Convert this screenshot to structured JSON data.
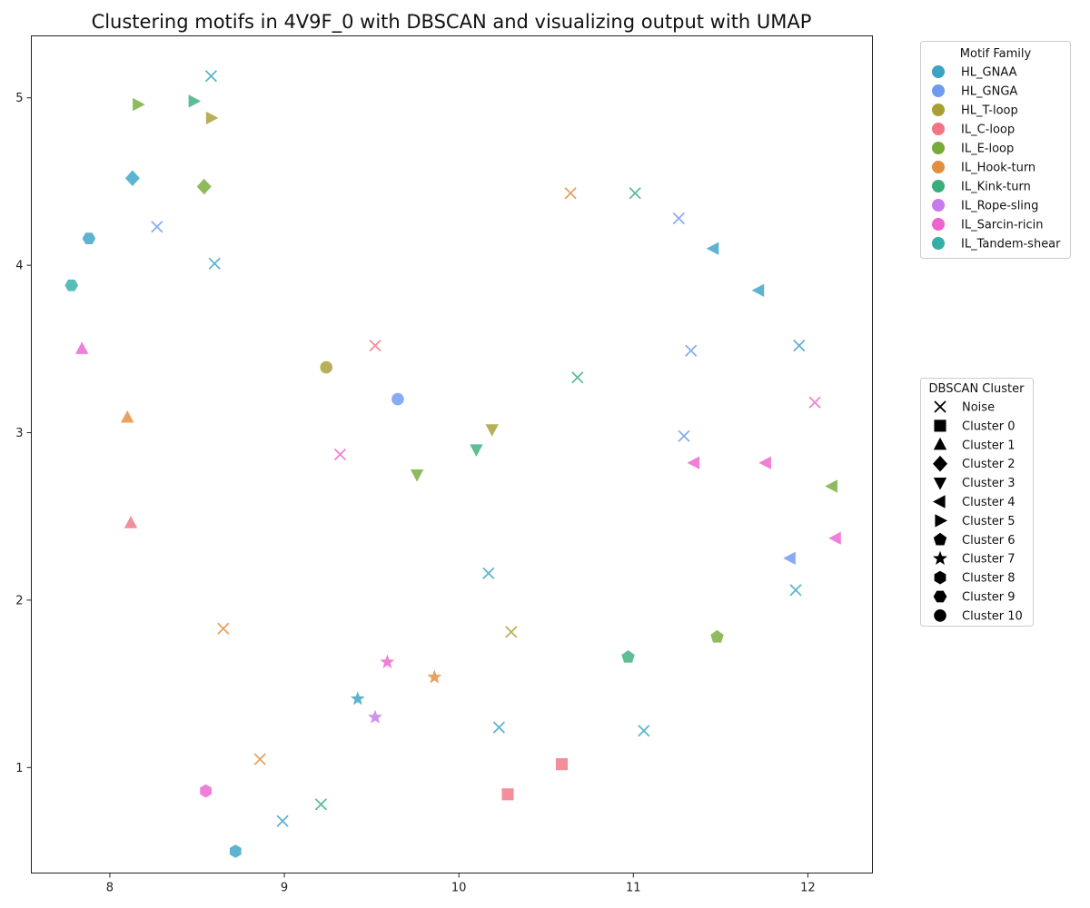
{
  "chart_data": {
    "type": "scatter",
    "title": "Clustering motifs in 4V9F_0 with DBSCAN and visualizing output with UMAP",
    "xlabel": "",
    "ylabel": "",
    "xlim": [
      7.55,
      12.37
    ],
    "ylim": [
      0.37,
      5.37
    ],
    "xticks": [
      8,
      9,
      10,
      11,
      12
    ],
    "yticks": [
      1,
      2,
      3,
      4,
      5
    ],
    "grid": false,
    "families": [
      {
        "name": "HL_GNAA",
        "color": "#3ba3c4"
      },
      {
        "name": "HL_GNGA",
        "color": "#6e9af0"
      },
      {
        "name": "HL_T-loop",
        "color": "#a89f35"
      },
      {
        "name": "IL_C-loop",
        "color": "#f07585"
      },
      {
        "name": "IL_E-loop",
        "color": "#76ac3a"
      },
      {
        "name": "IL_Hook-turn",
        "color": "#e08f3f"
      },
      {
        "name": "IL_Kink-turn",
        "color": "#3aae7c"
      },
      {
        "name": "IL_Rope-sling",
        "color": "#c77ae9"
      },
      {
        "name": "IL_Sarcin-ricin",
        "color": "#ec64cf"
      },
      {
        "name": "IL_Tandem-shear",
        "color": "#34aea7"
      }
    ],
    "family_legend_title": "Motif Family",
    "clusters": [
      {
        "name": "Noise",
        "marker": "x"
      },
      {
        "name": "Cluster 0",
        "marker": "square"
      },
      {
        "name": "Cluster 1",
        "marker": "triangle-up"
      },
      {
        "name": "Cluster 2",
        "marker": "diamond"
      },
      {
        "name": "Cluster 3",
        "marker": "triangle-down"
      },
      {
        "name": "Cluster 4",
        "marker": "triangle-left"
      },
      {
        "name": "Cluster 5",
        "marker": "triangle-right"
      },
      {
        "name": "Cluster 6",
        "marker": "pentagon"
      },
      {
        "name": "Cluster 7",
        "marker": "star"
      },
      {
        "name": "Cluster 8",
        "marker": "hexagon"
      },
      {
        "name": "Cluster 9",
        "marker": "hexagon-flat"
      },
      {
        "name": "Cluster 10",
        "marker": "circle"
      }
    ],
    "cluster_legend_title": "DBSCAN Cluster",
    "points": [
      {
        "x": 8.58,
        "y": 5.13,
        "family": "HL_GNAA",
        "cluster": "Noise"
      },
      {
        "x": 8.16,
        "y": 4.96,
        "family": "IL_E-loop",
        "cluster": "Cluster 5"
      },
      {
        "x": 8.48,
        "y": 4.98,
        "family": "IL_Kink-turn",
        "cluster": "Cluster 5"
      },
      {
        "x": 8.58,
        "y": 4.88,
        "family": "HL_T-loop",
        "cluster": "Cluster 5"
      },
      {
        "x": 8.13,
        "y": 4.52,
        "family": "HL_GNAA",
        "cluster": "Cluster 2"
      },
      {
        "x": 8.54,
        "y": 4.47,
        "family": "IL_E-loop",
        "cluster": "Cluster 2"
      },
      {
        "x": 8.27,
        "y": 4.23,
        "family": "HL_GNGA",
        "cluster": "Noise"
      },
      {
        "x": 7.88,
        "y": 4.16,
        "family": "HL_GNAA",
        "cluster": "Cluster 9"
      },
      {
        "x": 8.6,
        "y": 4.01,
        "family": "HL_GNAA",
        "cluster": "Noise"
      },
      {
        "x": 7.78,
        "y": 3.88,
        "family": "IL_Tandem-shear",
        "cluster": "Cluster 9"
      },
      {
        "x": 7.84,
        "y": 3.5,
        "family": "IL_Sarcin-ricin",
        "cluster": "Cluster 1"
      },
      {
        "x": 8.1,
        "y": 3.09,
        "family": "IL_Hook-turn",
        "cluster": "Cluster 1"
      },
      {
        "x": 8.12,
        "y": 2.46,
        "family": "IL_C-loop",
        "cluster": "Cluster 1"
      },
      {
        "x": 10.64,
        "y": 4.43,
        "family": "IL_Hook-turn",
        "cluster": "Noise"
      },
      {
        "x": 11.01,
        "y": 4.43,
        "family": "IL_Kink-turn",
        "cluster": "Noise"
      },
      {
        "x": 11.26,
        "y": 4.28,
        "family": "HL_GNGA",
        "cluster": "Noise"
      },
      {
        "x": 11.46,
        "y": 4.1,
        "family": "HL_GNAA",
        "cluster": "Cluster 4"
      },
      {
        "x": 11.72,
        "y": 3.85,
        "family": "HL_GNAA",
        "cluster": "Cluster 4"
      },
      {
        "x": 9.52,
        "y": 3.52,
        "family": "IL_C-loop",
        "cluster": "Noise"
      },
      {
        "x": 11.95,
        "y": 3.52,
        "family": "HL_GNAA",
        "cluster": "Noise"
      },
      {
        "x": 11.33,
        "y": 3.49,
        "family": "HL_GNGA",
        "cluster": "Noise"
      },
      {
        "x": 9.24,
        "y": 3.39,
        "family": "HL_T-loop",
        "cluster": "Cluster 10"
      },
      {
        "x": 10.68,
        "y": 3.33,
        "family": "IL_Kink-turn",
        "cluster": "Noise"
      },
      {
        "x": 9.65,
        "y": 3.2,
        "family": "HL_GNGA",
        "cluster": "Cluster 10"
      },
      {
        "x": 12.04,
        "y": 3.18,
        "family": "IL_Sarcin-ricin",
        "cluster": "Noise"
      },
      {
        "x": 10.19,
        "y": 3.02,
        "family": "HL_T-loop",
        "cluster": "Cluster 3"
      },
      {
        "x": 11.29,
        "y": 2.98,
        "family": "HL_GNGA",
        "cluster": "Noise"
      },
      {
        "x": 10.1,
        "y": 2.9,
        "family": "IL_Kink-turn",
        "cluster": "Cluster 3"
      },
      {
        "x": 9.32,
        "y": 2.87,
        "family": "IL_Sarcin-ricin",
        "cluster": "Noise"
      },
      {
        "x": 11.35,
        "y": 2.82,
        "family": "IL_Sarcin-ricin",
        "cluster": "Cluster 4"
      },
      {
        "x": 11.76,
        "y": 2.82,
        "family": "IL_Sarcin-ricin",
        "cluster": "Cluster 4"
      },
      {
        "x": 9.76,
        "y": 2.75,
        "family": "IL_E-loop",
        "cluster": "Cluster 3"
      },
      {
        "x": 12.14,
        "y": 2.68,
        "family": "IL_E-loop",
        "cluster": "Cluster 4"
      },
      {
        "x": 12.16,
        "y": 2.37,
        "family": "IL_Sarcin-ricin",
        "cluster": "Cluster 4"
      },
      {
        "x": 11.9,
        "y": 2.25,
        "family": "HL_GNGA",
        "cluster": "Cluster 4"
      },
      {
        "x": 10.17,
        "y": 2.16,
        "family": "HL_GNAA",
        "cluster": "Noise"
      },
      {
        "x": 11.93,
        "y": 2.06,
        "family": "HL_GNAA",
        "cluster": "Noise"
      },
      {
        "x": 8.65,
        "y": 1.83,
        "family": "IL_Hook-turn",
        "cluster": "Noise"
      },
      {
        "x": 10.3,
        "y": 1.81,
        "family": "HL_T-loop",
        "cluster": "Noise"
      },
      {
        "x": 11.48,
        "y": 1.78,
        "family": "IL_E-loop",
        "cluster": "Cluster 6"
      },
      {
        "x": 10.97,
        "y": 1.66,
        "family": "IL_Kink-turn",
        "cluster": "Cluster 6"
      },
      {
        "x": 9.59,
        "y": 1.63,
        "family": "IL_Sarcin-ricin",
        "cluster": "Cluster 7"
      },
      {
        "x": 9.86,
        "y": 1.54,
        "family": "IL_Hook-turn",
        "cluster": "Cluster 7"
      },
      {
        "x": 9.42,
        "y": 1.41,
        "family": "HL_GNAA",
        "cluster": "Cluster 7"
      },
      {
        "x": 9.52,
        "y": 1.3,
        "family": "IL_Rope-sling",
        "cluster": "Cluster 7"
      },
      {
        "x": 10.23,
        "y": 1.24,
        "family": "HL_GNAA",
        "cluster": "Noise"
      },
      {
        "x": 11.06,
        "y": 1.22,
        "family": "HL_GNAA",
        "cluster": "Noise"
      },
      {
        "x": 8.86,
        "y": 1.05,
        "family": "IL_Hook-turn",
        "cluster": "Noise"
      },
      {
        "x": 10.59,
        "y": 1.02,
        "family": "IL_C-loop",
        "cluster": "Cluster 0"
      },
      {
        "x": 8.55,
        "y": 0.86,
        "family": "IL_Sarcin-ricin",
        "cluster": "Cluster 8"
      },
      {
        "x": 10.28,
        "y": 0.84,
        "family": "IL_C-loop",
        "cluster": "Cluster 0"
      },
      {
        "x": 9.21,
        "y": 0.78,
        "family": "IL_Kink-turn",
        "cluster": "Noise"
      },
      {
        "x": 8.99,
        "y": 0.68,
        "family": "HL_GNAA",
        "cluster": "Noise"
      },
      {
        "x": 8.72,
        "y": 0.5,
        "family": "HL_GNAA",
        "cluster": "Cluster 8"
      }
    ]
  }
}
